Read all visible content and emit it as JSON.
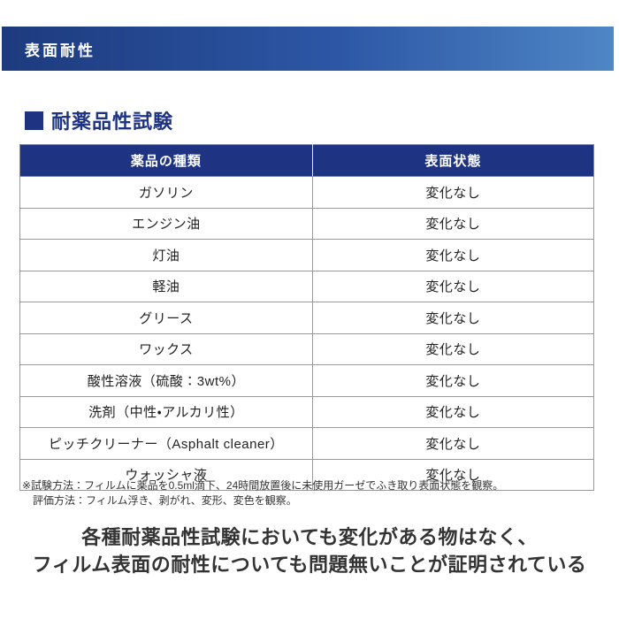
{
  "banner": {
    "title": "表面耐性"
  },
  "section": {
    "heading": "耐薬品性試験"
  },
  "table": {
    "columns": [
      "薬品の種類",
      "表面状態"
    ],
    "rows": [
      {
        "chemical": "ガソリン",
        "state": "変化なし"
      },
      {
        "chemical": "エンジン油",
        "state": "変化なし"
      },
      {
        "chemical": "灯油",
        "state": "変化なし"
      },
      {
        "chemical": "軽油",
        "state": "変化なし"
      },
      {
        "chemical": "グリース",
        "state": "変化なし"
      },
      {
        "chemical": "ワックス",
        "state": "変化なし"
      },
      {
        "chemical": "酸性溶液（硫酸：3wt%）",
        "state": "変化なし"
      },
      {
        "chemical": "洗剤（中性・アルカリ性）",
        "state": "変化なし"
      },
      {
        "chemical": "ピッチクリーナー（Asphalt cleaner）",
        "state": "変化なし"
      },
      {
        "chemical": "ウォッシャ液",
        "state": "変化なし"
      }
    ]
  },
  "notes": {
    "line1": "※試験方法：フィルムに薬品を0.5ml滴下、24時間放置後に未使用ガーゼでふき取り表面状態を観察。",
    "line2": "評価方法：フィルム浮き、剥がれ、変形、変色を観察。"
  },
  "conclusion": {
    "line1": "各種耐薬品性試験においても変化がある物はなく、",
    "line2": "フィルム表面の耐性についても問題無いことが証明されている"
  },
  "colors": {
    "navy": "#1e3382",
    "banner_gradient_left": "#1d3a7e",
    "banner_gradient_mid": "#2d57a5",
    "banner_gradient_right": "#4e86c6",
    "table_border": "#999999",
    "text_dark": "#333333"
  }
}
